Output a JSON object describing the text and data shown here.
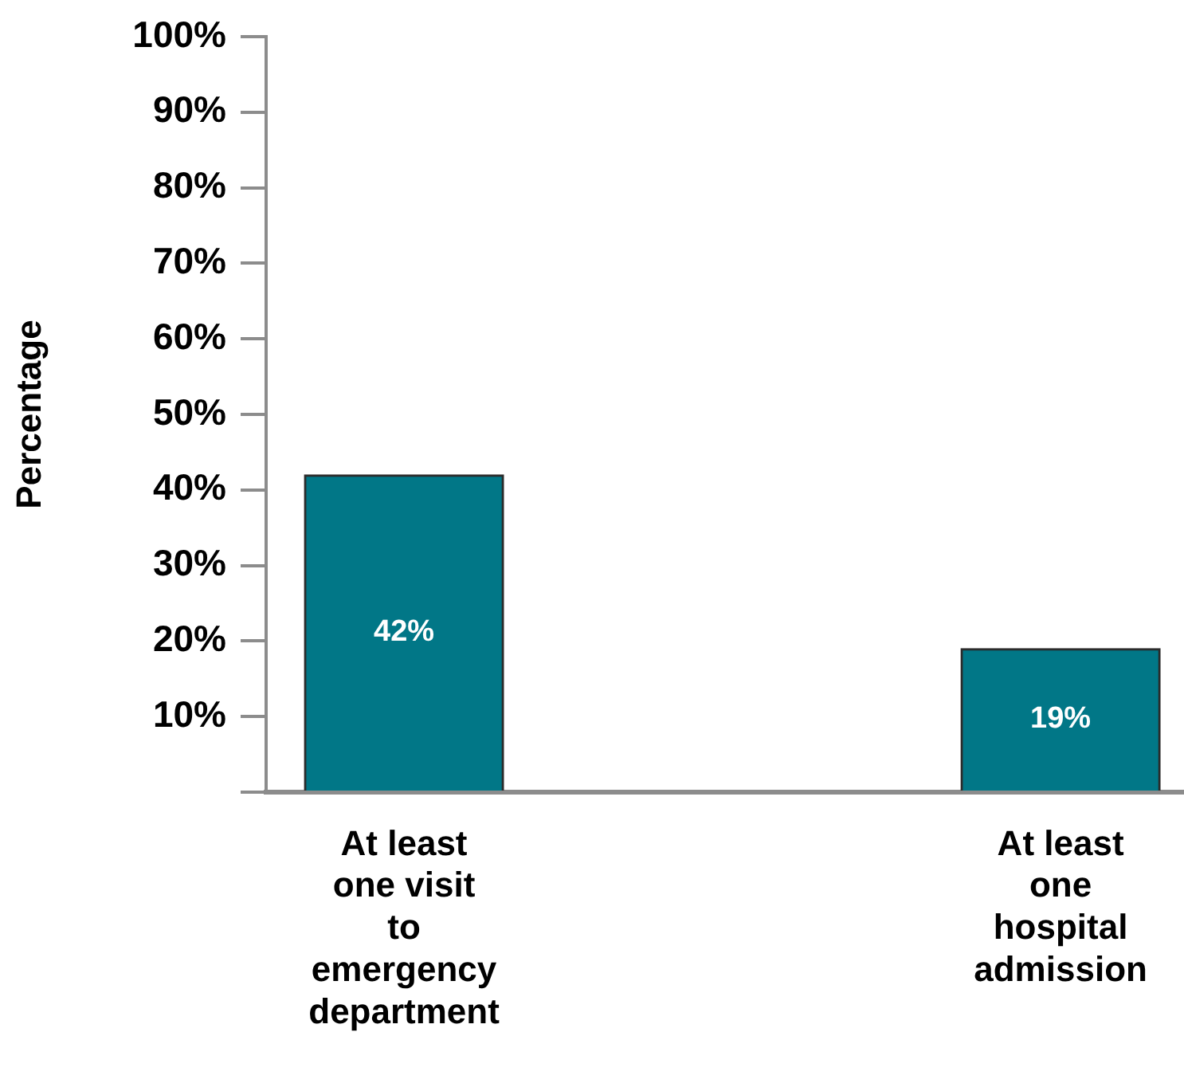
{
  "chart_data": {
    "type": "bar",
    "ylabel": "Percentage",
    "categories": [
      "At least one visit to emergency department",
      "At least one hospital admission"
    ],
    "values": [
      42,
      19
    ],
    "color": "#017787",
    "value_labels": [
      "42%",
      "19%"
    ],
    "ylim": [
      0,
      100
    ],
    "yticks": [
      {
        "value": 0,
        "label": null
      },
      {
        "value": 10,
        "label": "10%"
      },
      {
        "value": 20,
        "label": "20%"
      },
      {
        "value": 30,
        "label": "30%"
      },
      {
        "value": 40,
        "label": "40%"
      },
      {
        "value": 50,
        "label": "50%"
      },
      {
        "value": 60,
        "label": "60%"
      },
      {
        "value": 70,
        "label": "70%"
      },
      {
        "value": 80,
        "label": "80%"
      },
      {
        "value": 90,
        "label": "90%"
      },
      {
        "value": 100,
        "label": "100%"
      }
    ],
    "grid": false,
    "legend": false
  }
}
